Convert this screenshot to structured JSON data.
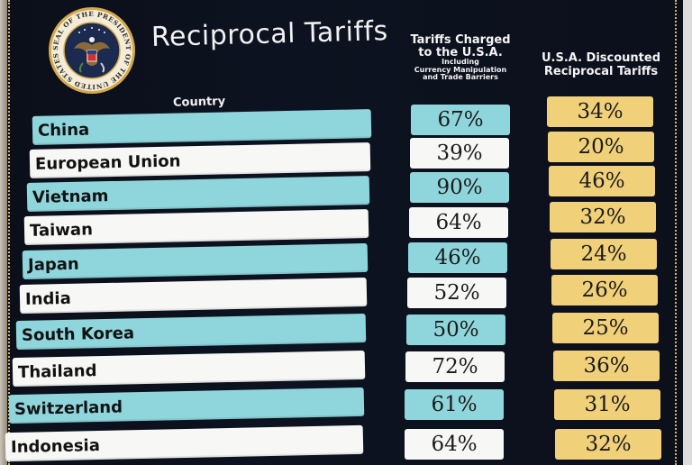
{
  "seal": {
    "ring_text": "SEAL OF THE PRESIDENT OF THE UNITED STATES"
  },
  "title": "Reciprocal Tariffs",
  "headers": {
    "country": "Country",
    "charged_line1": "Tariffs Charged",
    "charged_line2": "to the U.S.A.",
    "charged_line3": "Including",
    "charged_line4": "Currency Manipulation",
    "charged_line5": "and Trade Barriers",
    "discount_line1": "U.S.A. Discounted",
    "discount_line2": "Reciprocal Tariffs"
  },
  "rows": [
    {
      "country": "China",
      "charged": "67%",
      "discounted": "34%",
      "shade": "teal"
    },
    {
      "country": "European Union",
      "charged": "39%",
      "discounted": "20%",
      "shade": "white"
    },
    {
      "country": "Vietnam",
      "charged": "90%",
      "discounted": "46%",
      "shade": "teal"
    },
    {
      "country": "Taiwan",
      "charged": "64%",
      "discounted": "32%",
      "shade": "white"
    },
    {
      "country": "Japan",
      "charged": "46%",
      "discounted": "24%",
      "shade": "teal"
    },
    {
      "country": "India",
      "charged": "52%",
      "discounted": "26%",
      "shade": "white"
    },
    {
      "country": "South Korea",
      "charged": "50%",
      "discounted": "25%",
      "shade": "teal"
    },
    {
      "country": "Thailand",
      "charged": "72%",
      "discounted": "36%",
      "shade": "white"
    },
    {
      "country": "Switzerland",
      "charged": "61%",
      "discounted": "31%",
      "shade": "teal"
    },
    {
      "country": "Indonesia",
      "charged": "64%",
      "discounted": "32%",
      "shade": "white"
    }
  ],
  "colors": {
    "board": "#0b0f1a",
    "teal": "#8fd6dc",
    "white": "#f7f7f5",
    "gold": "#f1d07a",
    "seal_gold": "#d4a84b"
  }
}
